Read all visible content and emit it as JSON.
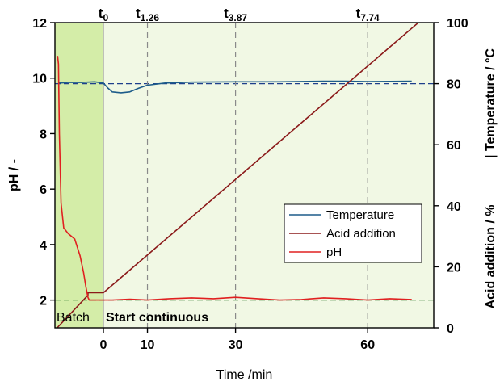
{
  "chart_data": {
    "type": "line",
    "xlabel": "Time /min",
    "ylabel_left": "pH / -",
    "ylabel_right_part1": "Acid addition / %",
    "ylabel_right_part2": "| Temperature / °C",
    "xlim": [
      -11,
      75
    ],
    "ylim_left": [
      1,
      12
    ],
    "ylim_right": [
      0,
      100
    ],
    "xticks": [
      0,
      10,
      30,
      60
    ],
    "yticks_left": [
      2,
      4,
      6,
      8,
      10,
      12
    ],
    "yticks_right": [
      0,
      20,
      40,
      60,
      80,
      100
    ],
    "grid": false,
    "legend_position": "center-right",
    "regions": [
      {
        "label": "Batch",
        "x_range": [
          -11,
          0
        ],
        "color": "#d4eda8"
      },
      {
        "label": "Start continuous",
        "x_range": [
          0,
          75
        ],
        "color": "#f1f8e4"
      }
    ],
    "time_markers": [
      {
        "base": "t",
        "sub": "0",
        "x": 0
      },
      {
        "base": "t",
        "sub": "1.26",
        "x": 10
      },
      {
        "base": "t",
        "sub": "3.87",
        "x": 30
      },
      {
        "base": "t",
        "sub": "7.74",
        "x": 60
      }
    ],
    "reference_lines": [
      {
        "axis": "left",
        "value": 2.0,
        "color": "#2d7a2d"
      },
      {
        "axis": "right",
        "value": 80,
        "color": "#1f3f8c"
      }
    ],
    "series": [
      {
        "name": "Temperature",
        "axis": "right",
        "color": "#1d5c8a",
        "x": [
          -10,
          -8,
          -5,
          -2,
          0,
          1,
          2,
          4,
          6,
          8,
          10,
          14,
          20,
          30,
          40,
          50,
          55,
          60,
          70
        ],
        "values": [
          80.2,
          80.4,
          80.4,
          80.6,
          80.2,
          78.6,
          77.3,
          77.0,
          77.3,
          78.5,
          79.5,
          80.2,
          80.5,
          80.6,
          80.6,
          80.8,
          80.8,
          80.7,
          80.8
        ]
      },
      {
        "name": "Acid addition",
        "axis": "right",
        "color": "#8b1a1a",
        "x": [
          -10.5,
          -3.5,
          -3.5,
          0,
          71.5
        ],
        "values": [
          0,
          10.7,
          11.5,
          11.5,
          100
        ]
      },
      {
        "name": "pH",
        "axis": "left",
        "color": "#e02020",
        "x": [
          -10.4,
          -10.2,
          -10,
          -9.6,
          -9,
          -8,
          -6.5,
          -5.3,
          -4.5,
          -4,
          -3.5,
          -3.2,
          -2.5,
          0,
          2,
          6,
          10,
          15,
          20,
          25,
          30,
          35,
          40,
          45,
          50,
          55,
          60,
          65,
          70
        ],
        "values": [
          10.8,
          10.5,
          8.0,
          5.5,
          4.6,
          4.4,
          4.2,
          3.6,
          3.0,
          2.5,
          2.1,
          2.0,
          2.0,
          2.0,
          2.0,
          2.03,
          2.0,
          2.05,
          2.08,
          2.05,
          2.1,
          2.05,
          2.0,
          2.02,
          2.08,
          2.05,
          2.0,
          2.05,
          2.02
        ]
      }
    ]
  }
}
